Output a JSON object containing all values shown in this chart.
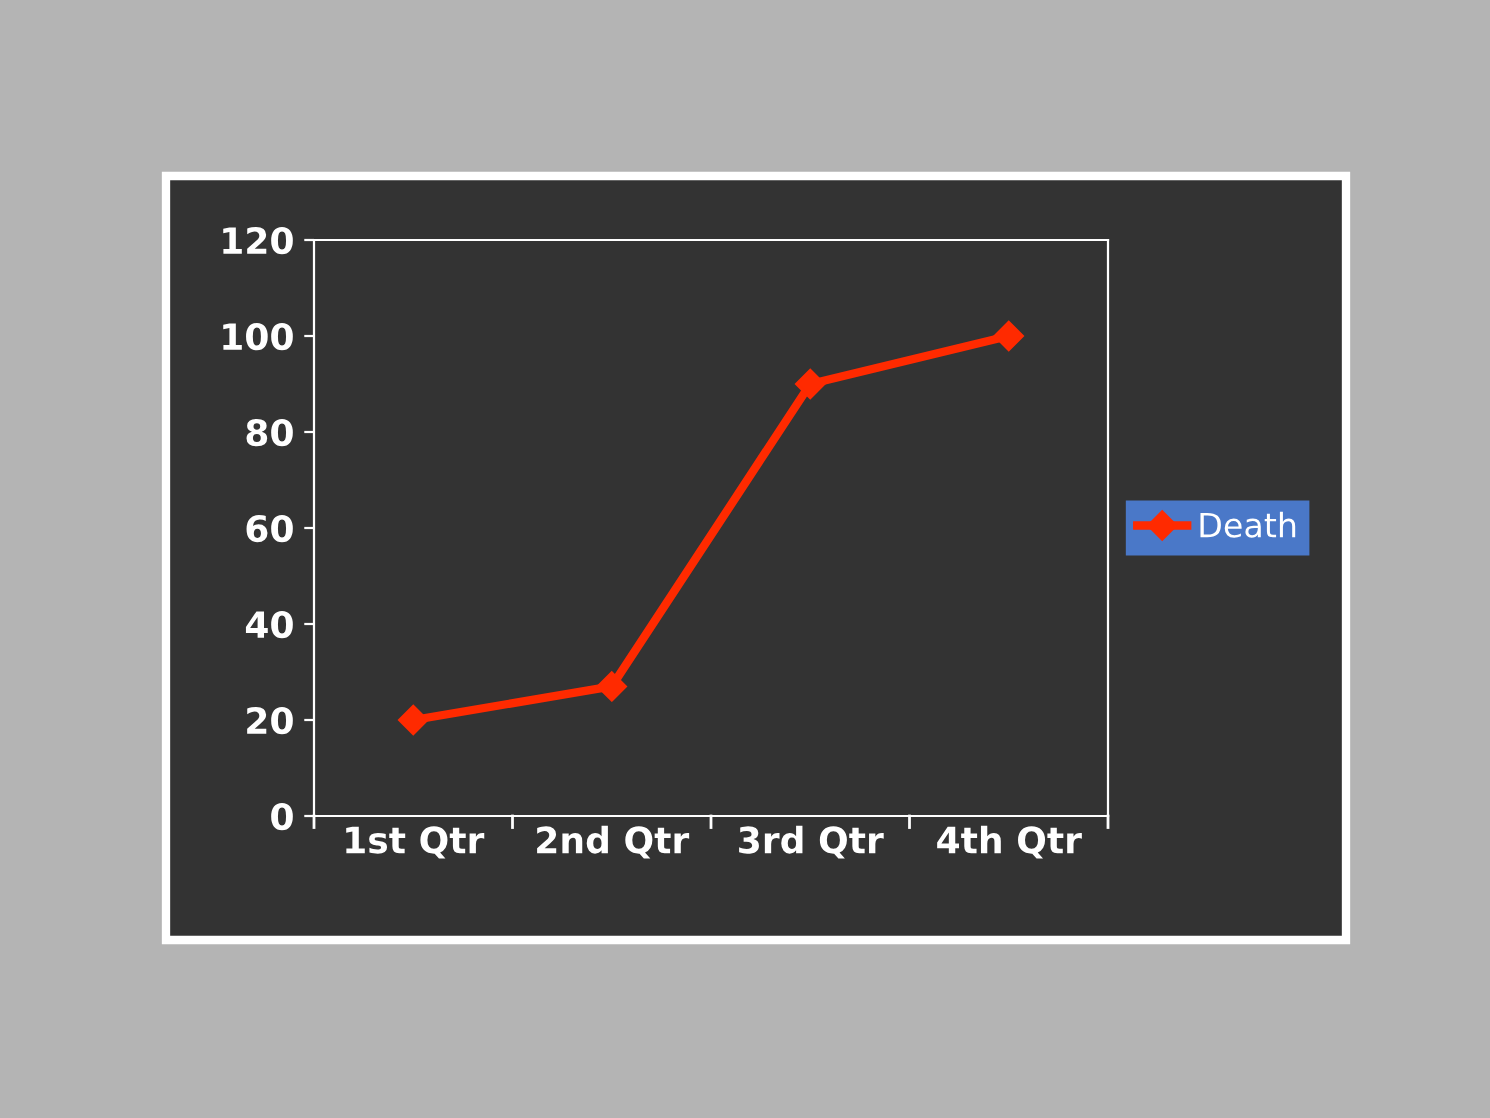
{
  "chart_data": {
    "type": "line",
    "categories": [
      "1st Qtr",
      "2nd Qtr",
      "3rd Qtr",
      "4th Qtr"
    ],
    "series": [
      {
        "name": "Death",
        "color": "#ff2a00",
        "values": [
          20,
          27,
          90,
          100
        ]
      }
    ],
    "ylim": [
      0,
      120
    ],
    "yticks": [
      0,
      20,
      40,
      60,
      80,
      100,
      120
    ],
    "grid": false,
    "legend": "right",
    "marker": "diamond",
    "line_style": "solid"
  }
}
